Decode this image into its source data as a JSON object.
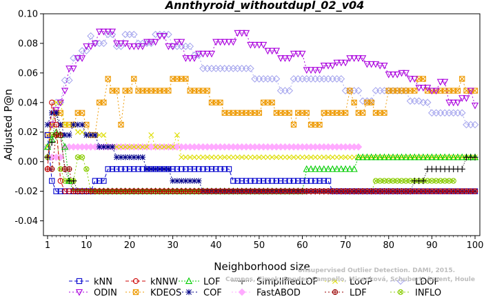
{
  "chart_data": {
    "type": "line",
    "title": "Annthyroid_withoutdupl_02_v04",
    "xlabel": "Neighborhood size",
    "ylabel": "Adjusted P@n",
    "xlim": [
      1,
      100
    ],
    "ylim": [
      -0.05,
      0.1
    ],
    "xticks": [
      1,
      10,
      20,
      30,
      40,
      50,
      60,
      70,
      80,
      90,
      100
    ],
    "yticks": [
      -0.04,
      -0.02,
      0.0,
      0.02,
      0.04,
      0.06,
      0.08,
      0.1
    ],
    "ytick_labels": [
      "-0.04",
      "-0.02",
      "0.00",
      "0.02",
      "0.04",
      "0.06",
      "0.08",
      "0.10"
    ],
    "grid": false,
    "legend_position": "bottom",
    "watermark": [
      "Campos, Zimek, Sander, Campello, Micenková, Schubert, Assent, Houle",
      "Unsupervised Outlier Detection. DAMI, 2015."
    ],
    "series": [
      {
        "name": "kNN",
        "color": "#0000cc",
        "marker": "square",
        "dash": "5,3",
        "points": [
          [
            1,
            0.018
          ],
          [
            2,
            -0.013
          ],
          [
            3,
            -0.02
          ],
          [
            6,
            -0.02
          ],
          [
            11,
            -0.02
          ],
          [
            12,
            -0.013
          ],
          [
            13,
            -0.013
          ],
          [
            15,
            -0.005
          ],
          [
            22,
            -0.005
          ],
          [
            23,
            -0.005
          ],
          [
            27,
            -0.005
          ],
          [
            28,
            -0.005
          ],
          [
            43,
            -0.005
          ],
          [
            44,
            -0.013
          ],
          [
            66,
            -0.013
          ],
          [
            67,
            -0.02
          ],
          [
            100,
            -0.02
          ]
        ]
      },
      {
        "name": "kNNW",
        "color": "#cc0000",
        "marker": "circle",
        "dash": "5,3",
        "points": [
          [
            1,
            -0.005
          ],
          [
            2,
            0.04
          ],
          [
            3,
            0.025
          ],
          [
            4,
            -0.013
          ],
          [
            5,
            -0.02
          ],
          [
            100,
            -0.02
          ]
        ]
      },
      {
        "name": "LOF",
        "color": "#00cc00",
        "marker": "triangle",
        "dash": "2,2",
        "points": [
          [
            1,
            0.01
          ],
          [
            2,
            0.015
          ],
          [
            3,
            0.02
          ],
          [
            4,
            0.018
          ],
          [
            5,
            0.01
          ],
          [
            6,
            -0.013
          ],
          [
            7,
            -0.02
          ],
          [
            10,
            -0.02
          ],
          [
            60,
            -0.02
          ],
          [
            61,
            -0.005
          ],
          [
            72,
            -0.005
          ],
          [
            73,
            0.003
          ],
          [
            100,
            0.003
          ]
        ]
      },
      {
        "name": "SimplifiedLOF",
        "color": "#000000",
        "marker": "plus",
        "dash": "1,2",
        "points": [
          [
            1,
            0.003
          ],
          [
            2,
            0.013
          ],
          [
            3,
            0.033
          ],
          [
            4,
            0.018
          ],
          [
            5,
            -0.005
          ],
          [
            6,
            -0.013
          ],
          [
            8,
            -0.02
          ],
          [
            85,
            -0.02
          ],
          [
            86,
            -0.013
          ],
          [
            88,
            -0.013
          ],
          [
            89,
            -0.005
          ],
          [
            97,
            -0.005
          ],
          [
            98,
            0.003
          ],
          [
            100,
            0.003
          ]
        ]
      },
      {
        "name": "LoOP",
        "color": "#dddd00",
        "marker": "x",
        "dash": "2,3",
        "points": [
          [
            1,
            0.01
          ],
          [
            2,
            0.025
          ],
          [
            3,
            0.04
          ],
          [
            5,
            0.025
          ],
          [
            8,
            0.02
          ],
          [
            10,
            0.018
          ],
          [
            12,
            0.018
          ],
          [
            15,
            0.01
          ],
          [
            24,
            0.01
          ],
          [
            25,
            0.018
          ],
          [
            26,
            0.01
          ],
          [
            31,
            0.018
          ],
          [
            32,
            0.003
          ],
          [
            100,
            0.003
          ]
        ]
      },
      {
        "name": "LDOF",
        "color": "#a8a8ee",
        "marker": "diamond",
        "dash": "2,3",
        "points": [
          [
            1,
            0.01
          ],
          [
            2,
            0.025
          ],
          [
            3,
            0.04
          ],
          [
            5,
            0.055
          ],
          [
            7,
            0.07
          ],
          [
            9,
            0.075
          ],
          [
            11,
            0.085
          ],
          [
            12,
            0.08
          ],
          [
            15,
            0.086
          ],
          [
            17,
            0.078
          ],
          [
            19,
            0.086
          ],
          [
            22,
            0.08
          ],
          [
            26,
            0.086
          ],
          [
            30,
            0.078
          ],
          [
            35,
            0.072
          ],
          [
            37,
            0.063
          ],
          [
            45,
            0.063
          ],
          [
            49,
            0.056
          ],
          [
            52,
            0.056
          ],
          [
            55,
            0.048
          ],
          [
            58,
            0.056
          ],
          [
            65,
            0.056
          ],
          [
            70,
            0.048
          ],
          [
            74,
            0.041
          ],
          [
            77,
            0.048
          ],
          [
            80,
            0.048
          ],
          [
            85,
            0.041
          ],
          [
            88,
            0.04
          ],
          [
            90,
            0.033
          ],
          [
            97,
            0.033
          ],
          [
            98,
            0.025
          ],
          [
            100,
            0.025
          ]
        ]
      },
      {
        "name": "ODIN",
        "color": "#aa00dd",
        "marker": "invtriangle",
        "dash": "2,3",
        "points": [
          [
            2,
            0.025
          ],
          [
            3,
            0.035
          ],
          [
            4,
            0.04
          ],
          [
            5,
            0.048
          ],
          [
            6,
            0.063
          ],
          [
            8,
            0.07
          ],
          [
            10,
            0.078
          ],
          [
            12,
            0.08
          ],
          [
            13,
            0.088
          ],
          [
            15,
            0.088
          ],
          [
            17,
            0.08
          ],
          [
            20,
            0.078
          ],
          [
            24,
            0.081
          ],
          [
            27,
            0.085
          ],
          [
            29,
            0.078
          ],
          [
            31,
            0.081
          ],
          [
            33,
            0.07
          ],
          [
            36,
            0.073
          ],
          [
            40,
            0.081
          ],
          [
            45,
            0.087
          ],
          [
            48,
            0.079
          ],
          [
            52,
            0.075
          ],
          [
            55,
            0.07
          ],
          [
            58,
            0.073
          ],
          [
            61,
            0.062
          ],
          [
            65,
            0.065
          ],
          [
            68,
            0.067
          ],
          [
            71,
            0.07
          ],
          [
            75,
            0.066
          ],
          [
            78,
            0.065
          ],
          [
            80,
            0.059
          ],
          [
            83,
            0.06
          ],
          [
            85,
            0.056
          ],
          [
            87,
            0.05
          ],
          [
            90,
            0.048
          ],
          [
            92,
            0.054
          ],
          [
            94,
            0.04
          ],
          [
            97,
            0.043
          ],
          [
            99,
            0.048
          ],
          [
            100,
            0.038
          ]
        ]
      },
      {
        "name": "KDEOS",
        "color": "#ee9900",
        "marker": "squarex",
        "dash": "2,3",
        "points": [
          [
            1,
            0.018
          ],
          [
            2,
            0.025
          ],
          [
            3,
            0.033
          ],
          [
            5,
            0.025
          ],
          [
            8,
            0.033
          ],
          [
            10,
            0.025
          ],
          [
            11,
            0.018
          ],
          [
            12,
            0.018
          ],
          [
            13,
            0.04
          ],
          [
            15,
            0.056
          ],
          [
            16,
            0.048
          ],
          [
            18,
            0.025
          ],
          [
            19,
            0.048
          ],
          [
            21,
            0.056
          ],
          [
            22,
            0.048
          ],
          [
            29,
            0.048
          ],
          [
            30,
            0.056
          ],
          [
            33,
            0.056
          ],
          [
            34,
            0.048
          ],
          [
            38,
            0.048
          ],
          [
            39,
            0.04
          ],
          [
            41,
            0.04
          ],
          [
            42,
            0.033
          ],
          [
            50,
            0.033
          ],
          [
            51,
            0.04
          ],
          [
            53,
            0.04
          ],
          [
            54,
            0.033
          ],
          [
            57,
            0.033
          ],
          [
            58,
            0.025
          ],
          [
            59,
            0.033
          ],
          [
            61,
            0.033
          ],
          [
            62,
            0.025
          ],
          [
            64,
            0.025
          ],
          [
            65,
            0.033
          ],
          [
            70,
            0.033
          ],
          [
            71,
            0.048
          ],
          [
            72,
            0.04
          ],
          [
            73,
            0.033
          ],
          [
            75,
            0.04
          ],
          [
            77,
            0.033
          ],
          [
            79,
            0.033
          ],
          [
            80,
            0.048
          ],
          [
            85,
            0.048
          ],
          [
            87,
            0.056
          ],
          [
            89,
            0.048
          ],
          [
            96,
            0.048
          ],
          [
            97,
            0.056
          ],
          [
            98,
            0.048
          ],
          [
            100,
            0.048
          ]
        ]
      },
      {
        "name": "COF",
        "color": "#000088",
        "marker": "asterisk",
        "dash": "2,3",
        "points": [
          [
            1,
            0.025
          ],
          [
            2,
            0.033
          ],
          [
            3,
            0.033
          ],
          [
            4,
            0.025
          ],
          [
            5,
            0.018
          ],
          [
            7,
            0.025
          ],
          [
            9,
            0.025
          ],
          [
            10,
            0.018
          ],
          [
            12,
            0.018
          ],
          [
            13,
            0.01
          ],
          [
            16,
            0.01
          ],
          [
            17,
            0.003
          ],
          [
            23,
            0.003
          ],
          [
            24,
            -0.005
          ],
          [
            29,
            -0.005
          ],
          [
            30,
            -0.013
          ],
          [
            36,
            -0.013
          ],
          [
            37,
            -0.02
          ],
          [
            100,
            -0.02
          ]
        ]
      },
      {
        "name": "FastABOD",
        "color": "#ffaaff",
        "marker": "diamondfill",
        "dash": "2,3",
        "points": [
          [
            1,
            0.003
          ],
          [
            2,
            0.003
          ],
          [
            4,
            0.003
          ],
          [
            5,
            0.01
          ],
          [
            33,
            0.01
          ],
          [
            73,
            0.01
          ]
        ]
      },
      {
        "name": "LDF",
        "color": "#990000",
        "marker": "circleplus",
        "dash": "2,3",
        "points": [
          [
            1,
            -0.005
          ],
          [
            2,
            -0.005
          ],
          [
            3,
            0.018
          ],
          [
            5,
            -0.005
          ],
          [
            7,
            -0.02
          ],
          [
            100,
            -0.02
          ]
        ]
      },
      {
        "name": "INFLO",
        "color": "#88cc00",
        "marker": "circlex",
        "dash": "2,3",
        "points": [
          [
            1,
            0.003
          ],
          [
            2,
            0.018
          ],
          [
            3,
            0.018
          ],
          [
            4,
            -0.005
          ],
          [
            5,
            -0.013
          ],
          [
            8,
            0.003
          ],
          [
            10,
            -0.005
          ],
          [
            11,
            -0.02
          ],
          [
            76,
            -0.02
          ],
          [
            77,
            -0.013
          ],
          [
            95,
            -0.013
          ]
        ]
      }
    ]
  }
}
